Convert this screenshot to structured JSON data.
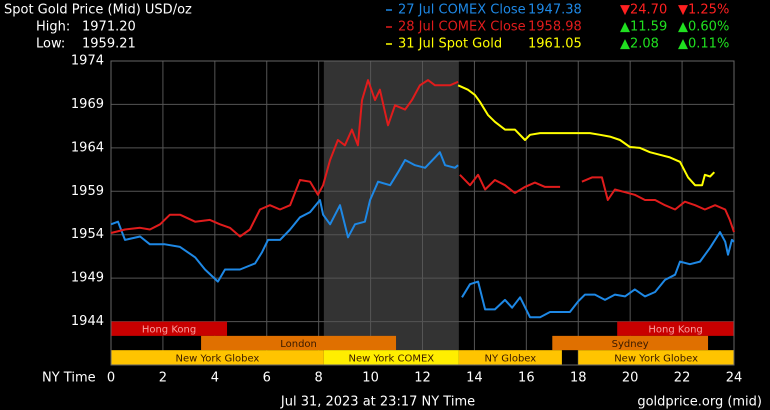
{
  "chart_data": {
    "type": "line",
    "title": "Spot Gold Price (Mid) USD/oz",
    "high_label": "High:",
    "high": "1971.20",
    "low_label": "Low:",
    "low": "1959.21",
    "xlabel": "NY Time",
    "footer": "Jul 31, 2023 at 23:17 NY Time",
    "source": "goldprice.org (mid)",
    "xlim": [
      0,
      24
    ],
    "xticks": [
      0,
      2,
      4,
      6,
      8,
      10,
      12,
      14,
      16,
      18,
      20,
      22,
      24
    ],
    "ylim": [
      1939,
      1974
    ],
    "yticks": [
      1944,
      1949,
      1954,
      1959,
      1964,
      1969,
      1974
    ],
    "grid": true,
    "shade": [
      8.2,
      13.4
    ],
    "sessions": [
      {
        "label": "Hong Kong",
        "start": 0,
        "end": 4.47,
        "row": 0,
        "color": "#c80000"
      },
      {
        "label": "Hong Kong",
        "start": 19.5,
        "end": 24,
        "row": 0,
        "color": "#c80000"
      },
      {
        "label": "London",
        "start": 3.47,
        "end": 10.98,
        "row": 1,
        "color": "#e07000"
      },
      {
        "label": "Sydney",
        "start": 17,
        "end": 23,
        "row": 1,
        "color": "#e07000"
      },
      {
        "label": "New York Globex",
        "start": 0,
        "end": 8.2,
        "row": 2,
        "color": "#ffc400"
      },
      {
        "label": "New York COMEX",
        "start": 8.2,
        "end": 13.4,
        "row": 2,
        "color": "#ffee00"
      },
      {
        "label": "NY Globex",
        "start": 13.4,
        "end": 17.37,
        "row": 2,
        "color": "#ffc400"
      },
      {
        "label": "New York Globex",
        "start": 18,
        "end": 24,
        "row": 2,
        "color": "#ffc400"
      }
    ],
    "series": [
      {
        "name": "27 Jul COMEX Close",
        "color": "#1e88e5",
        "close": "1947.38",
        "change": "▼24.70",
        "change_pct": "▼1.25%",
        "change_color": "#ff2020",
        "x": [
          0,
          0.27,
          0.54,
          1.12,
          1.5,
          2.08,
          2.66,
          3.24,
          3.62,
          4.12,
          4.39,
          4.97,
          5.55,
          5.82,
          6.05,
          6.51,
          6.9,
          7.28,
          7.67,
          8.05,
          8.17,
          8.44,
          8.82,
          9.13,
          9.4,
          9.78,
          9.98,
          10.29,
          10.75,
          11.06,
          11.33,
          11.71,
          12.1,
          12.48,
          12.67,
          12.87,
          13.25,
          13.37,
          null,
          13.52,
          13.83,
          14.14,
          14.41,
          14.79,
          15.18,
          15.45,
          15.76,
          16.14,
          16.53,
          16.91,
          17.3,
          17.68,
          17.99,
          18.26,
          18.64,
          19.03,
          19.41,
          19.8,
          20.18,
          20.57,
          20.96,
          21.34,
          21.73,
          21.92,
          22.3,
          22.69,
          23.08,
          23.46,
          23.66,
          23.77,
          23.92,
          24
        ],
        "values": [
          1955.2,
          1955.5,
          1953.4,
          1953.8,
          1952.9,
          1952.9,
          1952.6,
          1951.4,
          1950.0,
          1948.6,
          1950.0,
          1950.0,
          1950.7,
          1952.0,
          1953.4,
          1953.4,
          1954.6,
          1956.0,
          1956.6,
          1958.0,
          1956.3,
          1955.2,
          1957.4,
          1953.7,
          1955.2,
          1955.5,
          1958.0,
          1960.1,
          1959.7,
          1961.2,
          1962.6,
          1962.0,
          1961.7,
          1962.9,
          1963.5,
          1962.0,
          1961.7,
          1962.0,
          null,
          1946.8,
          1948.3,
          1948.6,
          1945.4,
          1945.4,
          1946.5,
          1945.6,
          1946.8,
          1944.5,
          1944.5,
          1945.1,
          1945.1,
          1945.1,
          1946.3,
          1947.1,
          1947.1,
          1946.5,
          1947.1,
          1946.9,
          1947.7,
          1946.9,
          1947.4,
          1948.8,
          1949.4,
          1950.9,
          1950.6,
          1950.9,
          1952.5,
          1954.3,
          1953.2,
          1951.7,
          1953.4,
          1953.2
        ]
      },
      {
        "name": "28 Jul COMEX Close",
        "color": "#e01c1c",
        "close": "1958.98",
        "change": "▲11.59",
        "change_pct": "▲0.60%",
        "change_color": "#20e020",
        "x": [
          0,
          0.54,
          1.12,
          1.5,
          1.89,
          2.27,
          2.66,
          3.24,
          3.81,
          4.2,
          4.58,
          4.97,
          5.35,
          5.74,
          6.12,
          6.51,
          6.9,
          7.28,
          7.67,
          7.97,
          8.17,
          8.44,
          8.74,
          9.01,
          9.28,
          9.51,
          9.67,
          9.9,
          10.17,
          10.36,
          10.67,
          10.94,
          11.33,
          11.59,
          11.9,
          12.21,
          12.48,
          12.75,
          13.06,
          13.37,
          null,
          13.44,
          13.83,
          14.14,
          14.41,
          14.79,
          15.18,
          15.56,
          15.95,
          16.33,
          16.72,
          17.3,
          null,
          18.14,
          18.53,
          18.91,
          19.14,
          19.41,
          19.8,
          20.18,
          20.57,
          20.96,
          21.34,
          21.73,
          22.11,
          22.5,
          22.88,
          23.27,
          23.66,
          23.84,
          24
        ],
        "values": [
          1954.2,
          1954.6,
          1954.8,
          1954.6,
          1955.2,
          1956.3,
          1956.3,
          1955.5,
          1955.7,
          1955.2,
          1954.8,
          1953.8,
          1954.6,
          1956.9,
          1957.4,
          1956.9,
          1957.4,
          1960.3,
          1960.1,
          1958.6,
          1959.7,
          1962.6,
          1964.9,
          1964.3,
          1966.1,
          1964.3,
          1969.5,
          1971.8,
          1969.5,
          1970.7,
          1966.6,
          1968.9,
          1968.4,
          1969.5,
          1971.2,
          1971.8,
          1971.2,
          1971.2,
          1971.2,
          1971.6,
          null,
          1960.9,
          1959.7,
          1960.9,
          1959.2,
          1960.3,
          1959.7,
          1958.8,
          1959.5,
          1960.0,
          1959.5,
          1959.5,
          null,
          1960.1,
          1960.6,
          1960.6,
          1958.0,
          1959.2,
          1958.9,
          1958.6,
          1958.0,
          1958.0,
          1957.4,
          1956.9,
          1957.8,
          1957.4,
          1956.9,
          1957.4,
          1956.9,
          1955.7,
          1954.3
        ]
      },
      {
        "name": "31 Jul Spot Gold",
        "color": "#ffff00",
        "close": "1961.05",
        "change": "▲2.08",
        "change_pct": "▲0.11%",
        "change_color": "#20e020",
        "x": [
          13.37,
          13.75,
          14.02,
          14.21,
          14.52,
          14.79,
          15.18,
          15.56,
          15.95,
          16.14,
          16.53,
          17.3,
          18.07,
          18.45,
          18.84,
          19.22,
          19.61,
          19.99,
          20.38,
          20.76,
          21.15,
          21.53,
          21.92,
          22.23,
          22.5,
          22.77,
          22.88,
          23.08,
          23.24
        ],
        "values": [
          1971.2,
          1970.7,
          1970.1,
          1969.3,
          1967.8,
          1967.0,
          1966.1,
          1966.1,
          1964.9,
          1965.5,
          1965.7,
          1965.7,
          1965.7,
          1965.7,
          1965.5,
          1965.3,
          1964.9,
          1964.1,
          1964.0,
          1963.5,
          1963.2,
          1962.9,
          1962.4,
          1960.6,
          1959.7,
          1959.7,
          1960.9,
          1960.7,
          1961.2
        ]
      }
    ]
  }
}
